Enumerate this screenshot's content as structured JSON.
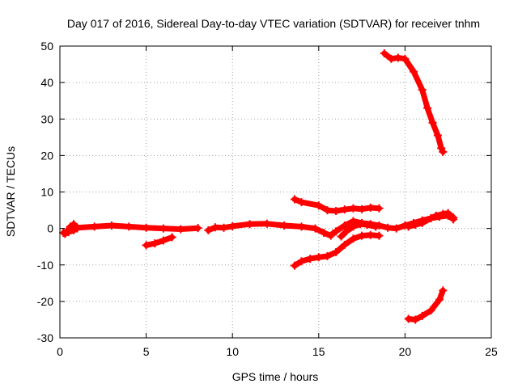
{
  "chart_data": {
    "type": "scatter",
    "title": "Day 017 of 2016, Sidereal Day-to-day VTEC variation (SDTVAR) for receiver tnhm",
    "xlabel": "GPS time / hours",
    "ylabel": "SDTVAR / TECUs",
    "xlim": [
      0,
      25
    ],
    "ylim": [
      -30,
      50
    ],
    "x_ticks": [
      0,
      5,
      10,
      15,
      20,
      25
    ],
    "y_ticks": [
      -30,
      -20,
      -10,
      0,
      10,
      20,
      30,
      40,
      50
    ],
    "grid": true,
    "legend": "none",
    "series_color": "#ff0000",
    "tracks": [
      {
        "points": [
          [
            0.2,
            -1.2
          ],
          [
            0.4,
            -0.8
          ],
          [
            0.6,
            0.5
          ],
          [
            0.8,
            1.2
          ],
          [
            1.0,
            0.2
          ],
          [
            2,
            0.5
          ],
          [
            3,
            0.8
          ],
          [
            4,
            0.5
          ],
          [
            5,
            0.2
          ],
          [
            6,
            0.0
          ],
          [
            7,
            -0.2
          ],
          [
            8,
            0.1
          ]
        ]
      },
      {
        "points": [
          [
            0.3,
            -1.5
          ],
          [
            0.5,
            -1.0
          ],
          [
            0.8,
            -0.5
          ],
          [
            1.0,
            0.0
          ]
        ]
      },
      {
        "points": [
          [
            5.0,
            -4.6
          ],
          [
            5.5,
            -4.1
          ],
          [
            6.0,
            -3.3
          ],
          [
            6.5,
            -2.4
          ]
        ]
      },
      {
        "points": [
          [
            8.6,
            -0.5
          ],
          [
            9,
            0.3
          ],
          [
            9.5,
            0.2
          ],
          [
            10,
            0.6
          ],
          [
            11,
            1.2
          ],
          [
            12,
            1.3
          ],
          [
            13,
            0.8
          ],
          [
            14,
            0.5
          ],
          [
            14.8,
            0.0
          ],
          [
            15.3,
            -1.2
          ],
          [
            15.7,
            -2.0
          ]
        ]
      },
      {
        "points": [
          [
            13.6,
            8.0
          ],
          [
            14,
            7.2
          ],
          [
            15,
            6.3
          ],
          [
            15.5,
            5.0
          ],
          [
            16,
            4.8
          ],
          [
            16.5,
            5.2
          ],
          [
            17,
            5.5
          ],
          [
            17.5,
            5.3
          ],
          [
            18,
            5.7
          ],
          [
            18.5,
            5.5
          ]
        ]
      },
      {
        "points": [
          [
            13.6,
            -10.2
          ],
          [
            14,
            -9.0
          ],
          [
            14.5,
            -8.3
          ],
          [
            15,
            -7.9
          ],
          [
            15.5,
            -7.6
          ],
          [
            16,
            -6.5
          ],
          [
            16.5,
            -4.5
          ],
          [
            17,
            -2.8
          ],
          [
            17.5,
            -2.0
          ],
          [
            18,
            -1.8
          ],
          [
            18.5,
            -2.0
          ]
        ]
      },
      {
        "points": [
          [
            15.8,
            -1.5
          ],
          [
            16,
            -0.8
          ],
          [
            16.5,
            0.8
          ],
          [
            17,
            2.0
          ],
          [
            17.5,
            1.5
          ],
          [
            18,
            1.2
          ],
          [
            18.5,
            0.8
          ],
          [
            19,
            0.2
          ],
          [
            19.5,
            0.0
          ],
          [
            20,
            0.8
          ],
          [
            20.5,
            1.5
          ],
          [
            21,
            2.2
          ],
          [
            21.5,
            2.8
          ],
          [
            22,
            3.2
          ],
          [
            22.5,
            3.5
          ],
          [
            22.8,
            2.5
          ]
        ]
      },
      {
        "points": [
          [
            16.3,
            -2.2
          ],
          [
            16.6,
            -0.8
          ],
          [
            17,
            0.5
          ],
          [
            17.4,
            1.2
          ],
          [
            17.8,
            1.0
          ],
          [
            18.3,
            0.5
          ]
        ]
      },
      {
        "points": [
          [
            20.2,
            0.5
          ],
          [
            20.6,
            1.0
          ],
          [
            21,
            1.5
          ],
          [
            21.5,
            2.8
          ],
          [
            21.8,
            3.5
          ],
          [
            22.2,
            4.0
          ],
          [
            22.5,
            4.2
          ],
          [
            22.8,
            3.0
          ]
        ]
      },
      {
        "points": [
          [
            18.8,
            48.0
          ],
          [
            19.2,
            46.5
          ],
          [
            19.6,
            46.8
          ],
          [
            20,
            46.5
          ],
          [
            20.5,
            43.0
          ],
          [
            21,
            38.0
          ],
          [
            21.3,
            33.0
          ],
          [
            21.6,
            29.0
          ],
          [
            21.9,
            25.5
          ],
          [
            22.1,
            22.0
          ],
          [
            22.2,
            21.0
          ]
        ]
      },
      {
        "points": [
          [
            20.2,
            -24.8
          ],
          [
            20.6,
            -25.0
          ],
          [
            21,
            -24.0
          ],
          [
            21.5,
            -22.5
          ],
          [
            22,
            -19.5
          ],
          [
            22.2,
            -17.0
          ]
        ]
      }
    ]
  }
}
